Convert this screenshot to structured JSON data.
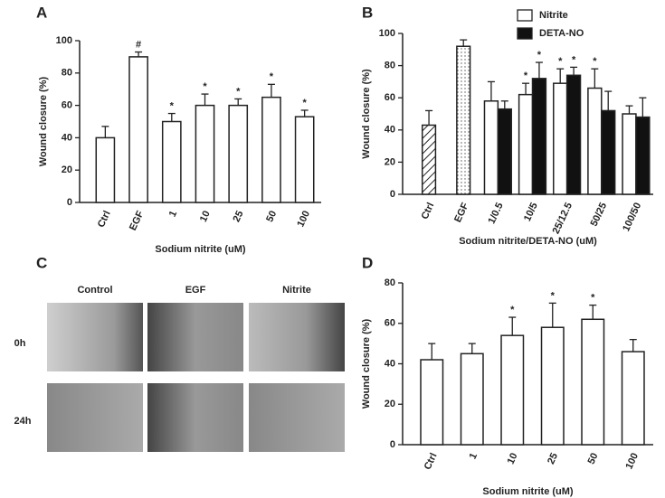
{
  "chart_data": [
    {
      "type": "bar",
      "panel": "A",
      "xlabel": "Sodium nitrite (uM)",
      "ylabel": "Wound closure (%)",
      "categories": [
        "Ctrl",
        "EGF",
        "1",
        "10",
        "25",
        "50",
        "100"
      ],
      "values": [
        40,
        90,
        50,
        60,
        60,
        65,
        53
      ],
      "errors": [
        7,
        3,
        5,
        7,
        4,
        8,
        4
      ],
      "annotations": [
        null,
        "#",
        "*",
        "*",
        "*",
        "*",
        "*"
      ],
      "color": "#ffffff",
      "ylim": [
        0,
        100
      ],
      "yticks": [
        0,
        20,
        40,
        60,
        80,
        100
      ]
    },
    {
      "type": "bar",
      "panel": "B",
      "xlabel": "Sodium nitrite/DETA-NO (uM)",
      "ylabel": "Wound closure (%)",
      "categories": [
        "Ctrl",
        "EGF",
        "1/0.5",
        "10/5",
        "25/12.5",
        "50/25",
        "100/50"
      ],
      "reference_values": [
        43,
        92,
        null,
        null,
        null,
        null,
        null
      ],
      "reference_errors": [
        9,
        4,
        null,
        null,
        null,
        null,
        null
      ],
      "reference_styles": [
        "hatch",
        "dots",
        null,
        null,
        null,
        null,
        null
      ],
      "series": [
        {
          "name": "Nitrite",
          "color": "#ffffff",
          "values": [
            null,
            null,
            58,
            62,
            69,
            66,
            50
          ],
          "errors": [
            null,
            null,
            12,
            7,
            9,
            12,
            5
          ],
          "annotations": [
            null,
            null,
            null,
            "*",
            "*",
            "*",
            null
          ]
        },
        {
          "name": "DETA-NO",
          "color": "#111111",
          "values": [
            null,
            null,
            53,
            72,
            74,
            52,
            48
          ],
          "errors": [
            null,
            null,
            5,
            10,
            5,
            12,
            12
          ],
          "annotations": [
            null,
            null,
            null,
            "*",
            "*",
            null,
            null
          ]
        }
      ],
      "legend": "upper right",
      "ylim": [
        0,
        100
      ],
      "yticks": [
        0,
        20,
        40,
        60,
        80,
        100
      ]
    },
    {
      "type": "bar",
      "panel": "D",
      "xlabel": "Sodium nitrite (uM)",
      "ylabel": "Wound closure (%)",
      "categories": [
        "Ctrl",
        "1",
        "10",
        "25",
        "50",
        "100"
      ],
      "values": [
        42,
        45,
        54,
        58,
        62,
        46
      ],
      "errors": [
        8,
        5,
        9,
        12,
        7,
        6
      ],
      "annotations": [
        null,
        null,
        "*",
        "*",
        "*",
        null
      ],
      "color": "#ffffff",
      "ylim": [
        0,
        80
      ],
      "yticks": [
        0,
        20,
        40,
        60,
        80
      ]
    }
  ],
  "image_panel": {
    "panel": "C",
    "columns": [
      "Control",
      "EGF",
      "Nitrite"
    ],
    "rows": [
      "0h",
      "24h"
    ]
  }
}
